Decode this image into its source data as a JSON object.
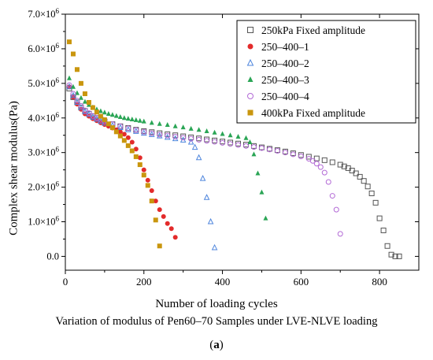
{
  "chart_data": {
    "type": "scatter",
    "xlabel": "Number of loading cycles",
    "ylabel": "Complex shear modulus(Pa)",
    "xlim": [
      0,
      900
    ],
    "ylim": [
      -0.4,
      7.0
    ],
    "x_ticks": [
      0,
      200,
      400,
      600,
      800
    ],
    "x_tick_labels": [
      "0",
      "200",
      "400",
      "600",
      "800"
    ],
    "y_ticks": [
      0,
      1,
      2,
      3,
      4,
      5,
      6,
      7
    ],
    "y_tick_labels": [
      {
        "base": "0.0",
        "exp": ""
      },
      {
        "base": "1.0×10",
        "exp": "6"
      },
      {
        "base": "2.0×10",
        "exp": "6"
      },
      {
        "base": "3.0×10",
        "exp": "6"
      },
      {
        "base": "4.0×10",
        "exp": "6"
      },
      {
        "base": "5.0×10",
        "exp": "6"
      },
      {
        "base": "6.0×10",
        "exp": "6"
      },
      {
        "base": "7.0×10",
        "exp": "6"
      }
    ],
    "y_unit_multiplier": 1000000,
    "grid": false,
    "legend_position": "top-right",
    "series": [
      {
        "name": "250kPa Fixed amplitude",
        "marker": "square-open",
        "color": "#555555",
        "x": [
          10,
          20,
          30,
          40,
          50,
          60,
          70,
          80,
          90,
          100,
          120,
          140,
          160,
          180,
          200,
          220,
          240,
          260,
          280,
          300,
          320,
          340,
          360,
          380,
          400,
          420,
          440,
          460,
          480,
          500,
          520,
          540,
          560,
          580,
          600,
          620,
          640,
          660,
          680,
          700,
          710,
          720,
          730,
          740,
          750,
          760,
          770,
          780,
          790,
          800,
          810,
          820,
          830,
          840,
          850
        ],
        "y": [
          4.85,
          4.6,
          4.45,
          4.3,
          4.2,
          4.12,
          4.05,
          4.0,
          3.95,
          3.9,
          3.82,
          3.76,
          3.71,
          3.66,
          3.62,
          3.59,
          3.56,
          3.53,
          3.5,
          3.47,
          3.44,
          3.41,
          3.38,
          3.35,
          3.32,
          3.29,
          3.26,
          3.23,
          3.19,
          3.15,
          3.11,
          3.07,
          3.03,
          2.98,
          2.93,
          2.88,
          2.83,
          2.78,
          2.72,
          2.65,
          2.6,
          2.55,
          2.48,
          2.4,
          2.3,
          2.18,
          2.02,
          1.82,
          1.55,
          1.1,
          0.75,
          0.3,
          0.05,
          0.0,
          0.0
        ]
      },
      {
        "name": "250–400–1",
        "marker": "circle-filled",
        "color": "#e32b2b",
        "x": [
          10,
          20,
          30,
          40,
          50,
          60,
          70,
          80,
          90,
          100,
          110,
          120,
          130,
          140,
          150,
          160,
          170,
          180,
          190,
          200,
          210,
          220,
          230,
          240,
          250,
          260,
          270,
          280
        ],
        "y": [
          4.9,
          4.6,
          4.4,
          4.25,
          4.12,
          4.05,
          3.98,
          3.92,
          3.86,
          3.81,
          3.76,
          3.71,
          3.66,
          3.6,
          3.53,
          3.43,
          3.3,
          3.1,
          2.85,
          2.5,
          2.2,
          1.9,
          1.6,
          1.35,
          1.15,
          0.95,
          0.8,
          0.55
        ]
      },
      {
        "name": "250–400–2",
        "marker": "triangle-open",
        "color": "#4f86dd",
        "x": [
          10,
          20,
          30,
          40,
          50,
          60,
          70,
          80,
          90,
          100,
          120,
          140,
          160,
          180,
          200,
          220,
          240,
          260,
          280,
          300,
          320,
          330,
          340,
          350,
          360,
          370,
          380
        ],
        "y": [
          4.9,
          4.65,
          4.45,
          4.3,
          4.18,
          4.1,
          4.02,
          3.96,
          3.9,
          3.85,
          3.78,
          3.72,
          3.66,
          3.61,
          3.56,
          3.52,
          3.48,
          3.44,
          3.4,
          3.36,
          3.3,
          3.15,
          2.85,
          2.25,
          1.7,
          1.0,
          0.25
        ]
      },
      {
        "name": "250–400–3",
        "marker": "triangle-filled",
        "color": "#2aa555",
        "x": [
          10,
          20,
          30,
          40,
          50,
          60,
          70,
          80,
          90,
          100,
          110,
          120,
          130,
          140,
          150,
          160,
          170,
          180,
          190,
          200,
          220,
          240,
          260,
          280,
          300,
          320,
          340,
          360,
          380,
          400,
          420,
          440,
          460,
          470,
          480,
          490,
          500,
          510
        ],
        "y": [
          5.15,
          4.9,
          4.72,
          4.58,
          4.47,
          4.38,
          4.31,
          4.25,
          4.2,
          4.16,
          4.12,
          4.09,
          4.06,
          4.03,
          4.0,
          3.98,
          3.96,
          3.94,
          3.92,
          3.9,
          3.86,
          3.83,
          3.8,
          3.76,
          3.73,
          3.69,
          3.66,
          3.62,
          3.58,
          3.54,
          3.5,
          3.46,
          3.42,
          3.3,
          2.95,
          2.4,
          1.85,
          1.1
        ]
      },
      {
        "name": "250–400–4",
        "marker": "circle-open",
        "color": "#b36ad6",
        "x": [
          10,
          20,
          30,
          40,
          50,
          60,
          70,
          80,
          90,
          100,
          120,
          140,
          160,
          180,
          200,
          220,
          240,
          260,
          280,
          300,
          320,
          340,
          360,
          380,
          400,
          420,
          440,
          460,
          480,
          500,
          520,
          540,
          560,
          580,
          600,
          620,
          630,
          640,
          650,
          660,
          670,
          680,
          690,
          700
        ],
        "y": [
          4.95,
          4.7,
          4.5,
          4.35,
          4.22,
          4.14,
          4.06,
          4.0,
          3.95,
          3.9,
          3.82,
          3.76,
          3.7,
          3.65,
          3.6,
          3.56,
          3.52,
          3.49,
          3.46,
          3.43,
          3.4,
          3.37,
          3.34,
          3.31,
          3.28,
          3.25,
          3.22,
          3.19,
          3.16,
          3.13,
          3.09,
          3.05,
          3.0,
          2.95,
          2.89,
          2.82,
          2.76,
          2.68,
          2.58,
          2.42,
          2.15,
          1.75,
          1.35,
          0.65
        ]
      },
      {
        "name": "400kPa Fixed amplitude",
        "marker": "square-filled",
        "color": "#c9960e",
        "x": [
          10,
          20,
          30,
          40,
          50,
          60,
          70,
          80,
          90,
          100,
          110,
          120,
          130,
          140,
          150,
          160,
          170,
          180,
          190,
          200,
          210,
          220,
          230,
          240
        ],
        "y": [
          6.2,
          5.85,
          5.4,
          5.0,
          4.7,
          4.45,
          4.3,
          4.17,
          4.05,
          3.95,
          3.83,
          3.72,
          3.6,
          3.48,
          3.35,
          3.2,
          3.05,
          2.88,
          2.65,
          2.35,
          2.05,
          1.6,
          1.05,
          0.3
        ]
      }
    ]
  },
  "caption": "Variation of modulus of Pen60–70 Samples under LVE-NLVE loading",
  "panel_label": "a"
}
